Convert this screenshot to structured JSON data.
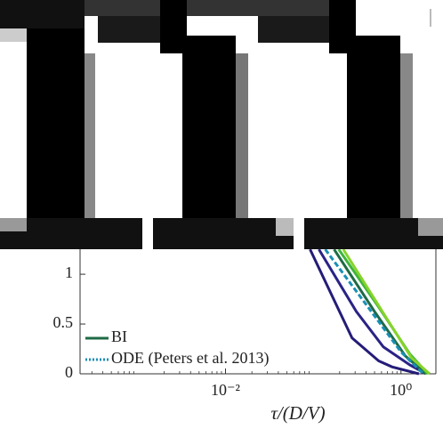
{
  "chart_data": {
    "type": "line",
    "xlabel": "τ/(D/V)",
    "xscale": "log",
    "xlim": [
      0.00022,
      2.5
    ],
    "xticks": [
      {
        "value": 0.01,
        "label": "10⁻²"
      },
      {
        "value": 1,
        "label": "10⁰"
      }
    ],
    "ylim": [
      0,
      3.7
    ],
    "yticks": [
      0,
      0.5,
      1
    ],
    "legend": "lower left",
    "series": [
      {
        "color": "#241c78",
        "x": [
          0.092,
          0.277,
          0.557,
          0.79,
          1.6
        ],
        "values": [
          1.25,
          0.36,
          0.13,
          0.07,
          0
        ]
      },
      {
        "color": "#2a2386",
        "x": [
          0.116,
          0.31,
          0.63,
          1.26,
          1.92
        ],
        "values": [
          1.25,
          0.625,
          0.27,
          0.09,
          0
        ]
      },
      {
        "name": "BI",
        "color": "#1e6b45",
        "x": [
          0.173,
          0.5,
          1.12,
          1.92
        ],
        "values": [
          1.25,
          0.625,
          0.18,
          0
        ]
      },
      {
        "color": "#3fb53c",
        "x": [
          0.195,
          0.557,
          1.26,
          2.02
        ],
        "values": [
          1.25,
          0.67,
          0.2,
          0
        ]
      },
      {
        "color": "#86d42a",
        "x": [
          0.22,
          0.63,
          1.32,
          2.12
        ],
        "values": [
          1.25,
          0.61,
          0.16,
          0
        ]
      },
      {
        "name": "ODE (Peters et al. 2013)",
        "color": "#1a8fb5",
        "linestyle": "dashed",
        "x": [
          0.137,
          0.39,
          1.0,
          1.8
        ],
        "values": [
          1.25,
          0.71,
          0.22,
          0
        ]
      }
    ]
  }
}
